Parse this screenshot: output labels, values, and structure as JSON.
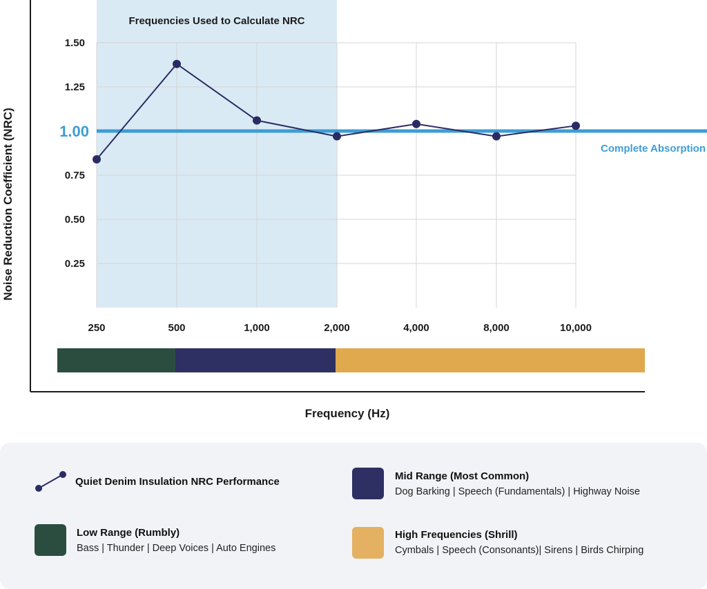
{
  "chart_data": {
    "type": "line",
    "title": "",
    "xlabel": "Frequency (Hz)",
    "ylabel": "Noise Reduction Coefficient (NRC)",
    "categories": [
      "250",
      "500",
      "1,000",
      "2,000",
      "4,000",
      "8,000",
      "10,000"
    ],
    "series": [
      {
        "name": "Quiet Denim Insulation NRC Performance",
        "values": [
          0.84,
          1.38,
          1.06,
          0.97,
          1.04,
          0.97,
          1.03
        ],
        "color": "#2b2b63"
      }
    ],
    "ylim": [
      0,
      1.5
    ],
    "yticks": [
      {
        "value": 0.25,
        "label": "0.25"
      },
      {
        "value": 0.5,
        "label": "0.50"
      },
      {
        "value": 0.75,
        "label": "0.75"
      },
      {
        "value": 1.0,
        "label": "1.00"
      },
      {
        "value": 1.25,
        "label": "1.25"
      },
      {
        "value": 1.5,
        "label": "1.50"
      }
    ],
    "grid": true,
    "reference_line": {
      "value": 1.0,
      "label": "Complete Absorption",
      "color": "#3d9dd4"
    },
    "highlight_region": {
      "from": "250",
      "to": "2,000",
      "label": "Frequencies Used to Calculate NRC",
      "color": "#daeaf5"
    },
    "frequency_bands": [
      {
        "name": "Low Range",
        "from": "250",
        "to": "500",
        "color": "#2b4d40"
      },
      {
        "name": "Mid Range",
        "from": "500",
        "to": "2,000",
        "color": "#2e2f63"
      },
      {
        "name": "High Frequencies",
        "from": "2,000",
        "to": "10,000",
        "color": "#e0a94e"
      }
    ]
  },
  "legend": {
    "line": {
      "label": "Quiet Denim Insulation NRC Performance",
      "icon": "line-marker-icon",
      "color": "#2b2b63"
    },
    "mid": {
      "title": "Mid Range (Most Common)",
      "desc": "Dog Barking | Speech (Fundamentals) | Highway Noise",
      "color": "#2e2f63"
    },
    "low": {
      "title": "Low Range (Rumbly)",
      "desc": "Bass | Thunder | Deep Voices | Auto Engines",
      "color": "#2b4d40"
    },
    "high": {
      "title": "High Frequencies (Shrill)",
      "desc": "Cymbals | Speech (Consonants)| Sirens | Birds Chirping",
      "color": "#e4b062"
    }
  }
}
